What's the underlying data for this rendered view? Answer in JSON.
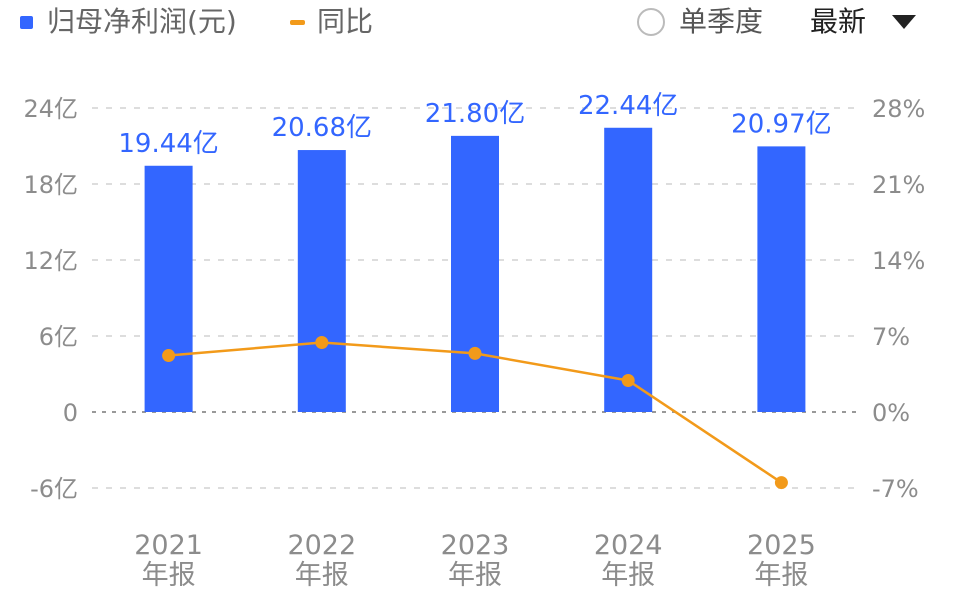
{
  "legend": {
    "bar_label": "归母净利润(元)",
    "line_label": "同比"
  },
  "controls": {
    "single_quarter_label": "单季度",
    "latest_label": "最新"
  },
  "colors": {
    "bar": "#3366ff",
    "line": "#f29a1a",
    "grid": "#dddddd",
    "zero_line": "#999999",
    "axis_text": "#8c8c8c"
  },
  "chart_data": {
    "type": "bar",
    "categories": [
      [
        "2021",
        "年报"
      ],
      [
        "2022",
        "年报"
      ],
      [
        "2023",
        "年报"
      ],
      [
        "2024",
        "年报"
      ],
      [
        "2025",
        "年报"
      ]
    ],
    "series": [
      {
        "name": "归母净利润(元)",
        "type": "bar",
        "axis": "left",
        "values": [
          19.44,
          20.68,
          21.8,
          22.44,
          20.97
        ],
        "value_labels": [
          "19.44亿",
          "20.68亿",
          "21.80亿",
          "22.44亿",
          "20.97亿"
        ]
      },
      {
        "name": "同比",
        "type": "line",
        "axis": "right",
        "values": [
          5.2,
          6.4,
          5.4,
          2.9,
          -6.5
        ]
      }
    ],
    "left_axis": {
      "ticks": [
        -6,
        0,
        6,
        12,
        18,
        24
      ],
      "tick_labels": [
        "-6亿",
        "0",
        "6亿",
        "12亿",
        "18亿",
        "24亿"
      ],
      "range": [
        -6,
        24
      ]
    },
    "right_axis": {
      "ticks": [
        -7,
        0,
        7,
        14,
        21,
        28
      ],
      "tick_labels": [
        "-7%",
        "0%",
        "7%",
        "14%",
        "21%",
        "28%"
      ],
      "range": [
        -7,
        28
      ]
    },
    "grid": true
  }
}
